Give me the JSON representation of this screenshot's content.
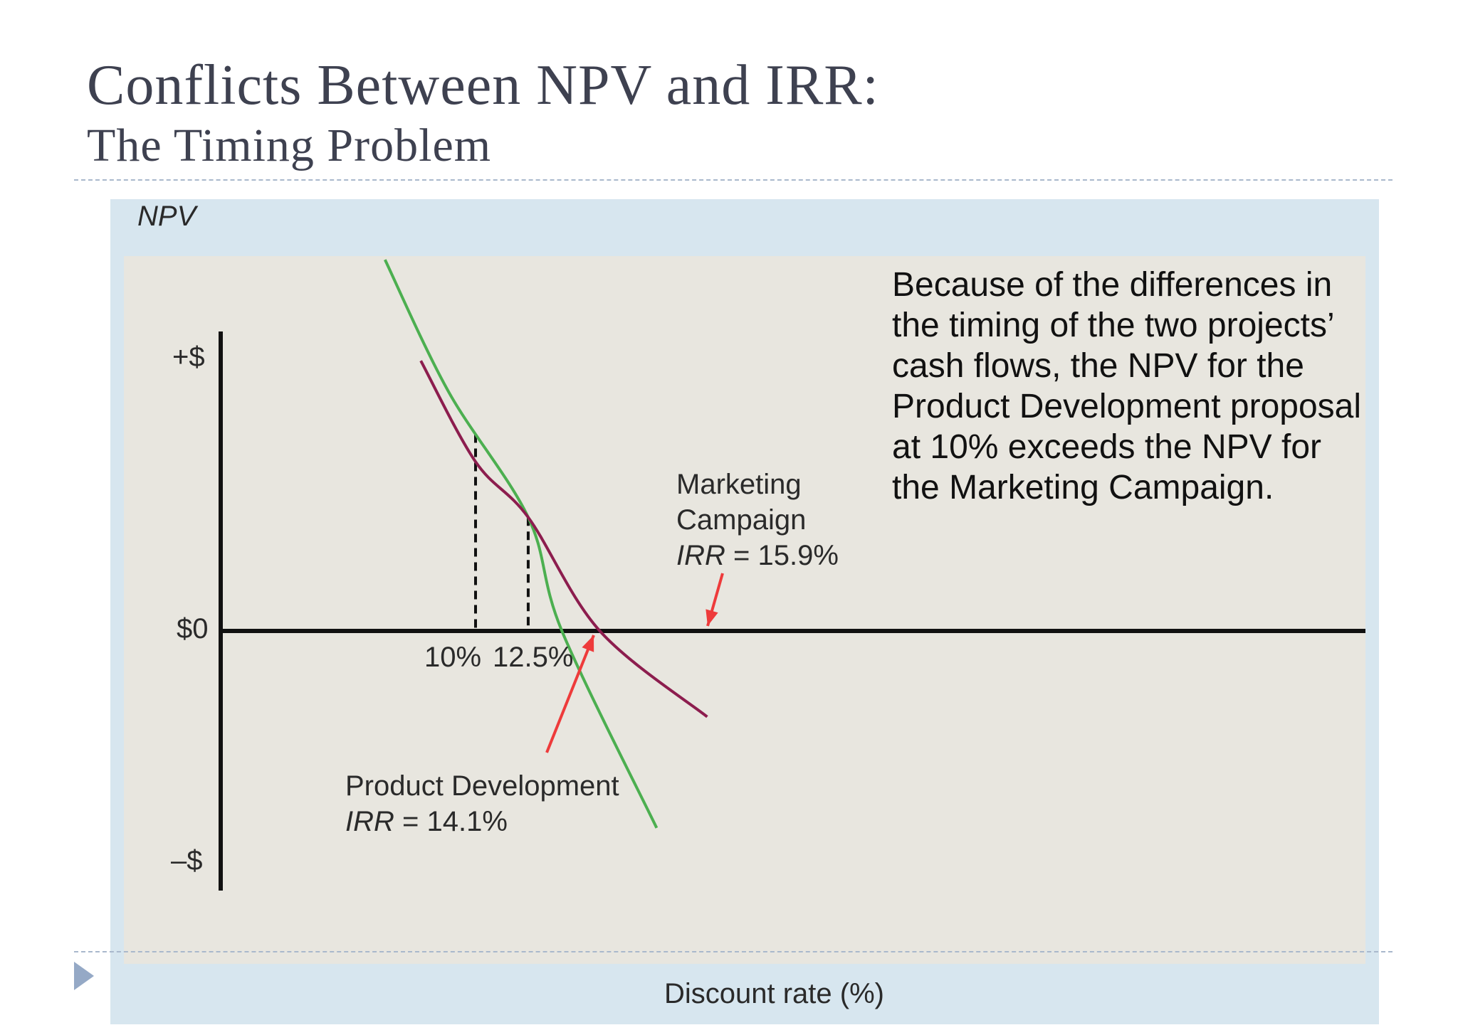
{
  "slide": {
    "title": "Conflicts Between NPV and IRR:",
    "subtitle": "The Timing Problem"
  },
  "chart_data": {
    "type": "line",
    "ylabel": "NPV",
    "xlabel": "Discount rate (%)",
    "y_tick_labels": [
      "+$",
      "$0",
      "–$"
    ],
    "x_tick_labels": [
      "10%",
      "12.5%"
    ],
    "grid": false,
    "series": [
      {
        "name": "Product Development",
        "color": "#4caf50",
        "x": [
          5.7,
          8.7,
          12.5,
          14.1,
          18.6
        ],
        "y": [
          1.47,
          0.95,
          0.45,
          0.0,
          -0.78
        ]
      },
      {
        "name": "Marketing Campaign",
        "color": "#8c1d4e",
        "x": [
          7.4,
          10.0,
          12.5,
          15.9,
          21.0
        ],
        "y": [
          1.07,
          0.67,
          0.45,
          0.0,
          -0.34
        ]
      }
    ],
    "x_markers": [
      10,
      12.5
    ],
    "annotations": {
      "marketing_line1": "Marketing",
      "marketing_line2": "Campaign",
      "marketing_irr": "IRR = 15.9%",
      "product_name": "Product Development",
      "product_irr": "IRR = 14.1%",
      "note": "Because of the differences in the timing of the two projects’ cash flows, the NPV for the Product Development proposal at 10% exceeds the NPV for the Marketing Campaign."
    },
    "colors": {
      "arrow": "#ee3b3b",
      "axis": "#111111",
      "frame": "#d7e6ef",
      "plot": "#e8e6df"
    }
  }
}
